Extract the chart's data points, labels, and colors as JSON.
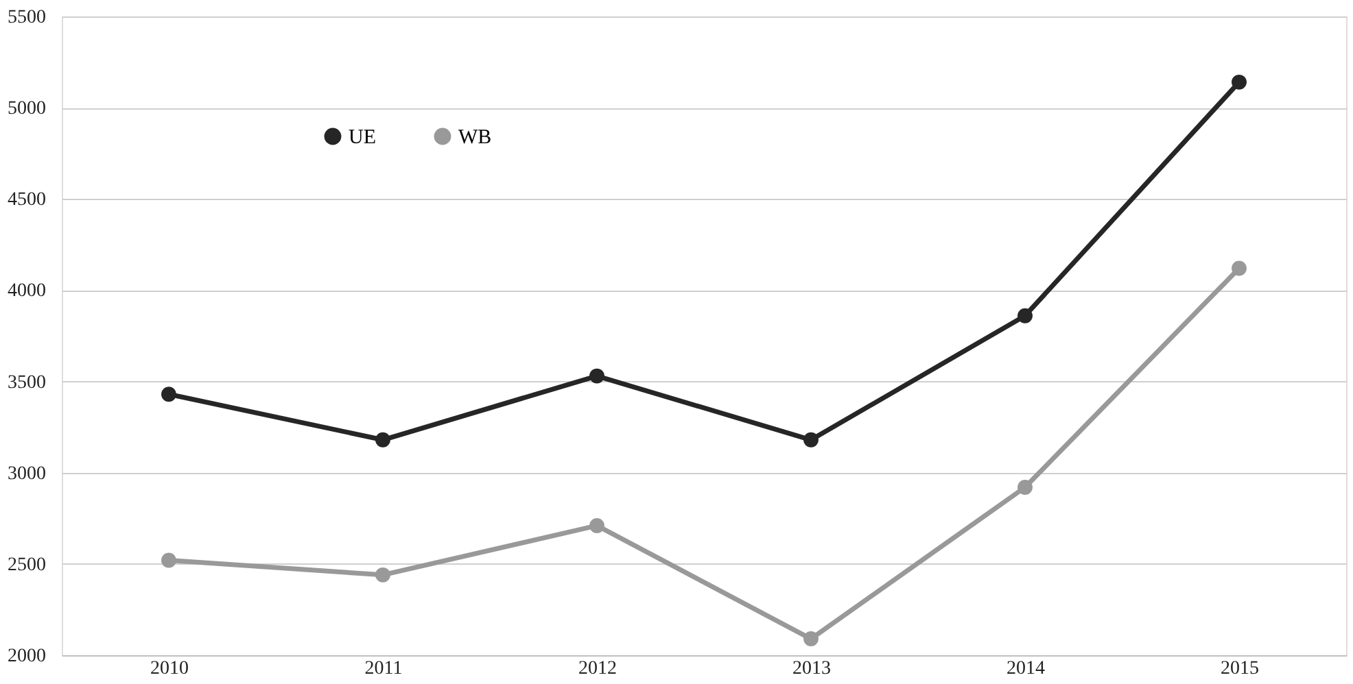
{
  "chart_data": {
    "type": "line",
    "categories": [
      "2010",
      "2011",
      "2012",
      "2013",
      "2014",
      "2015"
    ],
    "series": [
      {
        "name": "UE",
        "color": "#262626",
        "values": [
          3430,
          3180,
          3530,
          3180,
          3860,
          5140
        ]
      },
      {
        "name": "WB",
        "color": "#999999",
        "values": [
          2520,
          2440,
          2710,
          2090,
          2920,
          4120
        ]
      }
    ],
    "ylim": [
      2000,
      5500
    ],
    "yticks": [
      2000,
      2500,
      3000,
      3500,
      4000,
      4500,
      5000,
      5500
    ],
    "grid": "y",
    "legend": "top left",
    "marker": "circle",
    "line_style": "solid"
  }
}
